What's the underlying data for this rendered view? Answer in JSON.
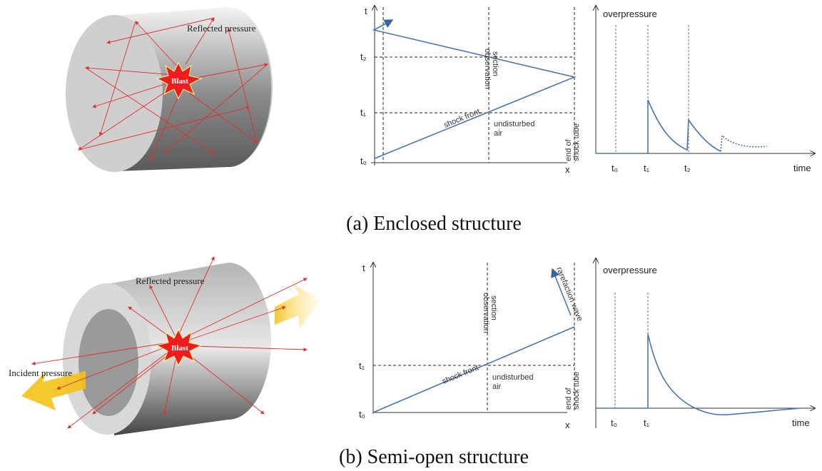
{
  "panels": [
    {
      "caption": "(a) Enclosed structure",
      "illustration": {
        "reflected_label": "Reflected pressure",
        "blast_label": "Blast"
      },
      "xt_diagram": {
        "t_axis": "t",
        "x_axis": "x",
        "t_ticks": [
          "t₂",
          "t₁",
          "t₀"
        ],
        "observation": [
          "observation",
          "section"
        ],
        "shock_front": "shock front",
        "undisturbed": [
          "undisturbed",
          "air"
        ],
        "end_tube": [
          "end of",
          "shock tube"
        ]
      },
      "pressure_plot": {
        "y_label": "overpressure",
        "x_label": "time",
        "ticks": [
          "t₀",
          "t₁",
          "t₂"
        ]
      }
    },
    {
      "caption": "(b) Semi-open structure",
      "illustration": {
        "reflected_label": "Reflected pressure",
        "blast_label": "Blast",
        "incident_label": "Incident pressure"
      },
      "xt_diagram": {
        "t_axis": "t",
        "x_axis": "x",
        "t_ticks": [
          "t₁",
          "t₀"
        ],
        "observation": [
          "observation",
          "section"
        ],
        "shock_front": "shock front",
        "undisturbed": [
          "undisturbed",
          "air"
        ],
        "end_tube": [
          "end of",
          "shock tube"
        ],
        "rarefaction": "rarefaction wave"
      },
      "pressure_plot": {
        "y_label": "overpressure",
        "x_label": "time",
        "ticks": [
          "t₀",
          "t₁"
        ]
      }
    }
  ]
}
